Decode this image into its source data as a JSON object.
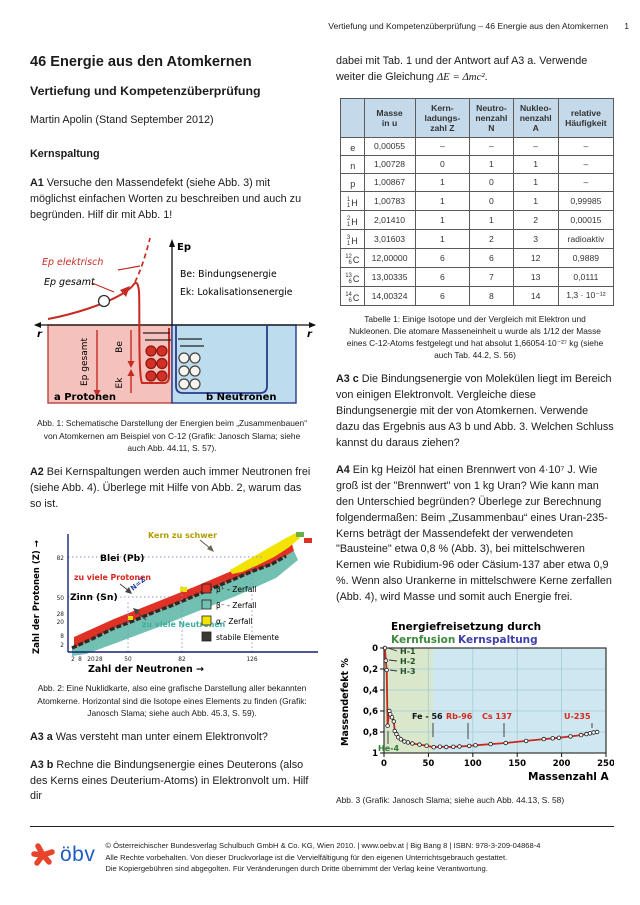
{
  "header": {
    "running_title": "Vertiefung und Kompetenzüberprüfung –  46 Energie aus den Atomkernen",
    "page_number": "1"
  },
  "left": {
    "title": "46 Energie aus den Atomkernen",
    "subtitle": "Vertiefung und Kompetenzüberprüfung",
    "author": "Martin Apolin (Stand September 2012)",
    "section_heading": "Kernspaltung",
    "a1": {
      "label": "A1",
      "text": " Versuche den Massendefekt (siehe Abb. 3) mit möglichst einfachen Worten zu beschreiben und auch zu begründen. Hilf dir mit Abb. 1!"
    },
    "fig1_caption": "Abb. 1: Schematische Darstellung der Energien beim „Zusammenbauen“ von Atomkernen am Beispiel von C-12 (Grafik: Janosch Slama; siehe auch Abb. 44.11, S. 57).",
    "a2": {
      "label": "A2",
      "text": " Bei Kernspaltungen werden auch immer Neutronen frei (siehe Abb. 4). Überlege mit Hilfe von Abb. 2, warum das so ist."
    },
    "fig2_caption": "Abb. 2: Eine Nuklidkarte, also eine grafische Darstellung aller bekannten Atomkerne. Horizontal sind die Isotope eines Elements zu finden (Grafik: Janosch Slama; siehe auch Abb. 45.3, S. 59).",
    "a3a": {
      "label": "A3 a",
      "text": " Was versteht man unter einem Elektronvolt?"
    },
    "a3b": {
      "label": "A3 b",
      "text": " Rechne die Bindungsenergie eines Deuterons (also des Kerns eines Deuterium-Atoms) in Elektronvolt um. Hilf dir"
    }
  },
  "right": {
    "intro": {
      "text_before": "dabei mit Tab. 1 und der Antwort auf A3 a. Verwende weiter die Gleichung ",
      "formula": "ΔE = Δmc²",
      "text_after": "."
    },
    "table_caption": "Tabelle 1: Einige Isotope und der Vergleich mit Elektron und Nukleonen. Die atomare Masseneinheit u wurde als 1/12 der Masse eines C-12-Atoms festgelegt und hat absolut 1,66054·10⁻²⁷ kg (siehe auch Tab. 44.2, S. 56)",
    "a3c": {
      "label": "A3 c",
      "text": " Die Bindungsenergie von Molekülen liegt im Bereich von einigen Elektronvolt. Vergleiche diese Bindungsenergie mit der von Atomkernen. Verwende dazu das Ergebnis aus A3 b und Abb. 3. Welchen Schluss kannst du daraus ziehen?"
    },
    "a4": {
      "label": "A4",
      "text": " Ein kg Heizöl hat einen Brennwert von 4·10⁷ J. Wie groß ist der \"Brennwert\" von 1 kg Uran? Wie kann man den Unterschied begründen? Überlege zur Berechnung folgendermaßen: Beim „Zusammenbau“ eines Uran-235-Kerns beträgt der Massendefekt der verwendeten \"Bausteine\" etwa 0,8 % (Abb. 3), bei mittelschweren Kernen wie Rubidium-96 oder Cäsium-137 aber etwa 0,9 %. Wenn also Urankerne in mittelschwere Kerne zerfallen (Abb. 4), wird Masse und somit auch Energie frei."
    },
    "fig3_caption": "Abb. 3 (Grafik: Janosch Slama; siehe auch Abb. 44.13, S. 58)"
  },
  "table": {
    "headers": [
      "",
      "Masse\nin u",
      "Kern-\nladungs-\nzahl Z",
      "Neutro-\nnenzahl\nN",
      "Nukleo-\nnenzahl\nA",
      "relative\nHäufigkeit"
    ],
    "rows": [
      {
        "sup": "",
        "sub": "",
        "sym": "e",
        "values": [
          "0,00055",
          "–",
          "–",
          "–",
          "–"
        ]
      },
      {
        "sup": "",
        "sub": "",
        "sym": "n",
        "values": [
          "1,00728",
          "0",
          "1",
          "1",
          "–"
        ]
      },
      {
        "sup": "",
        "sub": "",
        "sym": "p",
        "values": [
          "1,00867",
          "1",
          "0",
          "1",
          "–"
        ]
      },
      {
        "sup": "1",
        "sub": "1",
        "sym": "H",
        "values": [
          "1,00783",
          "1",
          "0",
          "1",
          "0,99985"
        ]
      },
      {
        "sup": "2",
        "sub": "1",
        "sym": "H",
        "values": [
          "2,01410",
          "1",
          "1",
          "2",
          "0,00015"
        ]
      },
      {
        "sup": "3",
        "sub": "1",
        "sym": "H",
        "values": [
          "3,01603",
          "1",
          "2",
          "3",
          "radioaktiv"
        ]
      },
      {
        "sup": "12",
        "sub": "6",
        "sym": "C",
        "values": [
          "12,00000",
          "6",
          "6",
          "12",
          "0,9889"
        ]
      },
      {
        "sup": "13",
        "sub": "6",
        "sym": "C",
        "values": [
          "13,00335",
          "6",
          "7",
          "13",
          "0,0111"
        ]
      },
      {
        "sup": "14",
        "sub": "6",
        "sym": "C",
        "values": [
          "14,00324",
          "6",
          "8",
          "14",
          "1,3 · 10⁻¹²"
        ]
      }
    ]
  },
  "figure1": {
    "axis_y": "Ep",
    "axis_x_left": "r",
    "axis_x_right": "r",
    "ep_elektrisch": "Ep elektrisch",
    "ep_gesamt": "Ep gesamt",
    "be_def": "Be: Bindungsenergie",
    "ek_def": "Ek: Lokalisationsenergie",
    "ep_gesamt_rot": "Ep gesamt",
    "be": "Be",
    "ek": "Ek",
    "protons": "a Protonen",
    "neutrons": "b Neutronen"
  },
  "chart_data": [
    {
      "id": "abb2",
      "type": "scatter",
      "description": "Nuklidkarte: Zerfallsarten aller bekannten Atomkerne",
      "xlabel": "Zahl der Neutronen  →",
      "ylabel": "Zahl der Protonen (Z) →",
      "xticks": [
        "2",
        "8",
        "20",
        "28",
        "50",
        "82",
        "126"
      ],
      "yticks": [
        "2",
        "8",
        "20",
        "28",
        "50",
        "82"
      ],
      "legend": [
        {
          "label": "β⁺ - Zerfall",
          "color": "#e03127"
        },
        {
          "label": "β⁻ - Zerfall",
          "color": "#72c0b1"
        },
        {
          "label": "α - Zerfall",
          "color": "#f2e400"
        },
        {
          "label": "stabile Elemente",
          "color": "#3a3833"
        }
      ],
      "annotations": {
        "too_heavy": "Kern zu schwer",
        "lead": "Blei (Pb)",
        "tin": "Zinn (Sn)",
        "nz": "N=Z",
        "too_many_protons": "zu viele Protonen",
        "too_many_neutrons": "zu viele Neutronen"
      }
    },
    {
      "id": "abb3",
      "type": "line",
      "title": "Energiefreisetzung durch",
      "title_fusion": "Kernfusion",
      "title_fission": "Kernspaltung",
      "xlabel": "Massenzahl A",
      "ylabel": "Massendefekt  %",
      "xlim": [
        0,
        250
      ],
      "ylim": [
        0,
        1
      ],
      "y_inverted": true,
      "xticks": [
        "0",
        "50",
        "100",
        "150",
        "200",
        "250"
      ],
      "yticks": [
        "0",
        "0,2",
        "0,4",
        "0,6",
        "0,8",
        "1"
      ],
      "line_color": "#c62a21",
      "regions": [
        {
          "name": "Kernfusion",
          "x": [
            0,
            55
          ],
          "color": "#d9e7ca"
        },
        {
          "name": "Kernspaltung",
          "x": [
            55,
            250
          ],
          "color": "#cfe7f0"
        }
      ],
      "points": [
        [
          1,
          0.0
        ],
        [
          2,
          0.12
        ],
        [
          3,
          0.21
        ],
        [
          4,
          0.74
        ],
        [
          6,
          0.6
        ],
        [
          7,
          0.63
        ],
        [
          9,
          0.66
        ],
        [
          11,
          0.7
        ],
        [
          12,
          0.79
        ],
        [
          14,
          0.82
        ],
        [
          16,
          0.85
        ],
        [
          19,
          0.87
        ],
        [
          23,
          0.89
        ],
        [
          27,
          0.9
        ],
        [
          32,
          0.91
        ],
        [
          40,
          0.92
        ],
        [
          48,
          0.93
        ],
        [
          56,
          0.945
        ],
        [
          63,
          0.94
        ],
        [
          70,
          0.943
        ],
        [
          78,
          0.941
        ],
        [
          85,
          0.938
        ],
        [
          96,
          0.932
        ],
        [
          103,
          0.927
        ],
        [
          120,
          0.915
        ],
        [
          137,
          0.905
        ],
        [
          160,
          0.885
        ],
        [
          180,
          0.868
        ],
        [
          190,
          0.86
        ],
        [
          197,
          0.855
        ],
        [
          210,
          0.842
        ],
        [
          222,
          0.83
        ],
        [
          228,
          0.82
        ],
        [
          232,
          0.812
        ],
        [
          236,
          0.805
        ],
        [
          240,
          0.8
        ]
      ],
      "annotations": {
        "h1": {
          "label": "H-1",
          "A": 1,
          "defect_percent": 0.0
        },
        "h2": {
          "label": "H-2",
          "A": 2,
          "defect_percent": 0.12
        },
        "h3": {
          "label": "H-3",
          "A": 3,
          "defect_percent": 0.21
        },
        "he4": {
          "label": "He-4",
          "A": 4,
          "defect_percent": 0.74
        },
        "fe": {
          "label": "Fe - 56",
          "A": 56,
          "defect_percent": 0.945
        },
        "rb": {
          "label": "Rb-96",
          "A": 96,
          "defect_percent": 0.932
        },
        "cs": {
          "label": "Cs 137",
          "A": 137,
          "defect_percent": 0.905
        },
        "u": {
          "label": "U-235",
          "A": 235,
          "defect_percent": 0.805
        }
      }
    }
  ],
  "footer": {
    "logo_text": "öbv",
    "line1": "© Österreichischer Bundesverlag Schulbuch GmbH & Co. KG, Wien 2010. | www.oebv.at | Big Bang 8 | ISBN: 978-3-209-04868-4",
    "line2": "Alle Rechte vorbehalten. Von dieser Druckvorlage ist die Vervielfältigung für den eigenen Unterrichtsgebrauch gestattet.",
    "line3": "Die Kopiergebühren sind abgegolten. Für Veränderungen durch Dritte übernimmt der Verlag keine Verantwortung."
  }
}
